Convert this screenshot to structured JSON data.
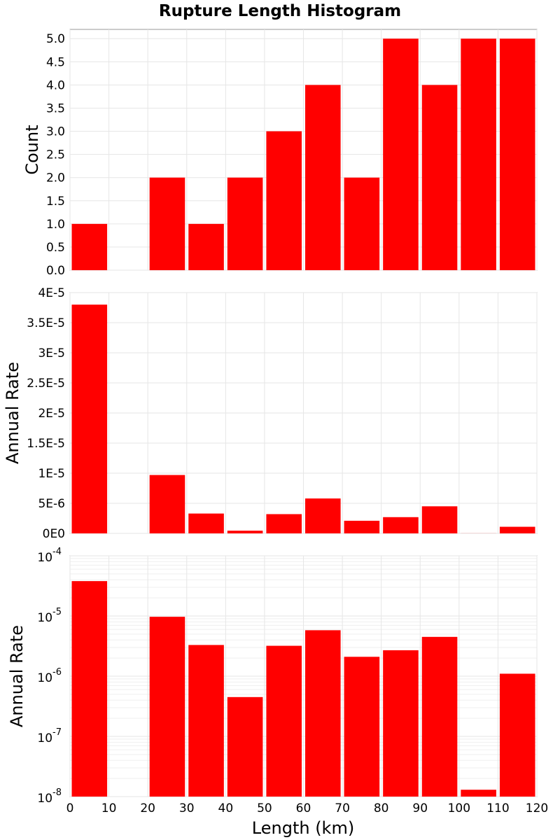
{
  "colors": {
    "bar": "#ff0000",
    "frame": "#999999",
    "grid": "#e6e6e6",
    "background": "#ffffff"
  },
  "chart_data": {
    "type": "bar",
    "title": "Rupture Length Histogram",
    "xlabel": "Length (km)",
    "xlim": [
      0,
      120
    ],
    "xticks": [
      0,
      10,
      20,
      30,
      40,
      50,
      60,
      70,
      80,
      90,
      100,
      110,
      120
    ],
    "bins": [
      [
        0,
        10
      ],
      [
        10,
        20
      ],
      [
        20,
        30
      ],
      [
        30,
        40
      ],
      [
        40,
        50
      ],
      [
        50,
        60
      ],
      [
        60,
        70
      ],
      [
        70,
        80
      ],
      [
        80,
        90
      ],
      [
        90,
        100
      ],
      [
        100,
        110
      ],
      [
        110,
        120
      ]
    ],
    "panels": [
      {
        "ylabel": "Count",
        "yscale": "linear",
        "ylim": [
          0,
          5.2
        ],
        "yticks": [
          0,
          0.5,
          1,
          1.5,
          2,
          2.5,
          3,
          3.5,
          4,
          4.5,
          5
        ],
        "ytick_labels": [
          "0.0",
          "0.5",
          "1.0",
          "1.5",
          "2.0",
          "2.5",
          "3.0",
          "3.5",
          "4.0",
          "4.5",
          "5.0"
        ],
        "values": [
          1,
          0,
          2,
          1,
          2,
          3,
          4,
          2,
          5,
          4,
          5,
          5
        ]
      },
      {
        "ylabel": "Annual Rate",
        "yscale": "linear",
        "ylim": [
          0,
          4e-05
        ],
        "yticks": [
          0,
          5e-06,
          1e-05,
          1.5e-05,
          2e-05,
          2.5e-05,
          3e-05,
          3.5e-05,
          4e-05
        ],
        "ytick_labels": [
          "0E0",
          "5E-6",
          "1E-5",
          "1.5E-5",
          "2E-5",
          "2.5E-5",
          "3E-5",
          "3.5E-5",
          "4E-5"
        ],
        "values": [
          3.8e-05,
          0,
          9.7e-06,
          3.3e-06,
          4.5e-07,
          3.2e-06,
          5.8e-06,
          2.1e-06,
          2.7e-06,
          4.5e-06,
          1.3e-08,
          1.1e-06
        ]
      },
      {
        "ylabel": "Annual Rate",
        "yscale": "log",
        "ylim": [
          1e-08,
          0.0001
        ],
        "ytick_exponents": [
          -4,
          -5,
          -6,
          -7,
          -8
        ],
        "ytick_base": "10",
        "values": [
          3.8e-05,
          0,
          9.7e-06,
          3.3e-06,
          4.5e-07,
          3.2e-06,
          5.8e-06,
          2.1e-06,
          2.7e-06,
          4.5e-06,
          1.3e-08,
          1.1e-06
        ]
      }
    ]
  }
}
